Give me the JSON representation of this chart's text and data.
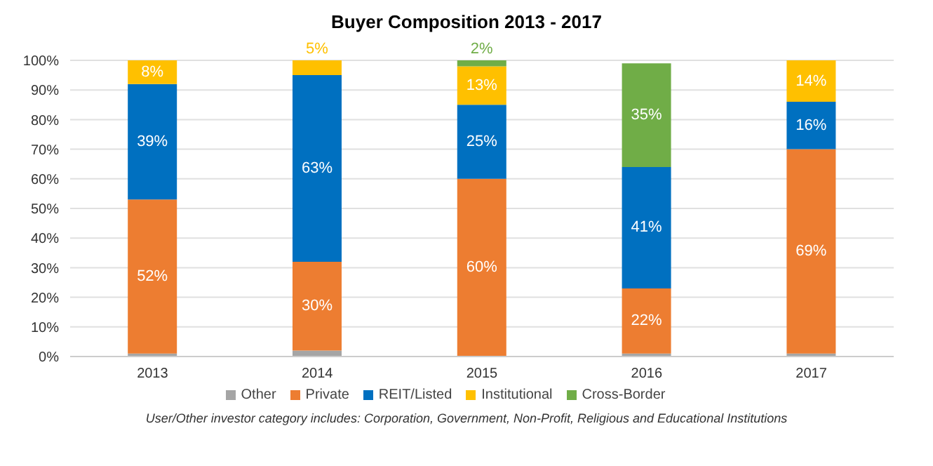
{
  "chart_data": {
    "type": "bar",
    "title": "Buyer Composition 2013 - 2017",
    "stacked": true,
    "categories": [
      "2013",
      "2014",
      "2015",
      "2016",
      "2017"
    ],
    "series": [
      {
        "name": "Other",
        "color": "#a5a5a5",
        "values": [
          1,
          2,
          0,
          1,
          1
        ],
        "value_labels": [
          null,
          null,
          null,
          null,
          null
        ]
      },
      {
        "name": "Private",
        "color": "#ed7d31",
        "values": [
          52,
          30,
          60,
          22,
          69
        ],
        "value_labels": [
          "52%",
          "30%",
          "60%",
          "22%",
          "69%"
        ]
      },
      {
        "name": "REIT/Listed",
        "color": "#0070c0",
        "values": [
          39,
          63,
          25,
          41,
          16
        ],
        "value_labels": [
          "39%",
          "63%",
          "25%",
          "41%",
          "16%"
        ]
      },
      {
        "name": "Institutional",
        "color": "#ffc000",
        "values": [
          8,
          5,
          13,
          0,
          14
        ],
        "value_labels": [
          "8%",
          "5%",
          "13%",
          null,
          "14%"
        ]
      },
      {
        "name": "Cross-Border",
        "color": "#70ad47",
        "values": [
          0,
          0,
          2,
          35,
          0
        ],
        "value_labels": [
          null,
          null,
          "2%",
          "35%",
          null
        ]
      }
    ],
    "ylim": [
      0,
      100
    ],
    "yticks": [
      {
        "value": 0,
        "label": "0%"
      },
      {
        "value": 10,
        "label": "10%"
      },
      {
        "value": 20,
        "label": "20%"
      },
      {
        "value": 30,
        "label": "30%"
      },
      {
        "value": 40,
        "label": "40%"
      },
      {
        "value": 50,
        "label": "50%"
      },
      {
        "value": 60,
        "label": "60%"
      },
      {
        "value": 70,
        "label": "70%"
      },
      {
        "value": 80,
        "label": "80%"
      },
      {
        "value": 90,
        "label": "90%"
      },
      {
        "value": 100,
        "label": "100%"
      }
    ],
    "grid": "y",
    "legend": "bottom",
    "annotations": [
      "User/Other investor category includes: Corporation, Government, Non-Profit, Religious and Educational Institutions"
    ]
  }
}
